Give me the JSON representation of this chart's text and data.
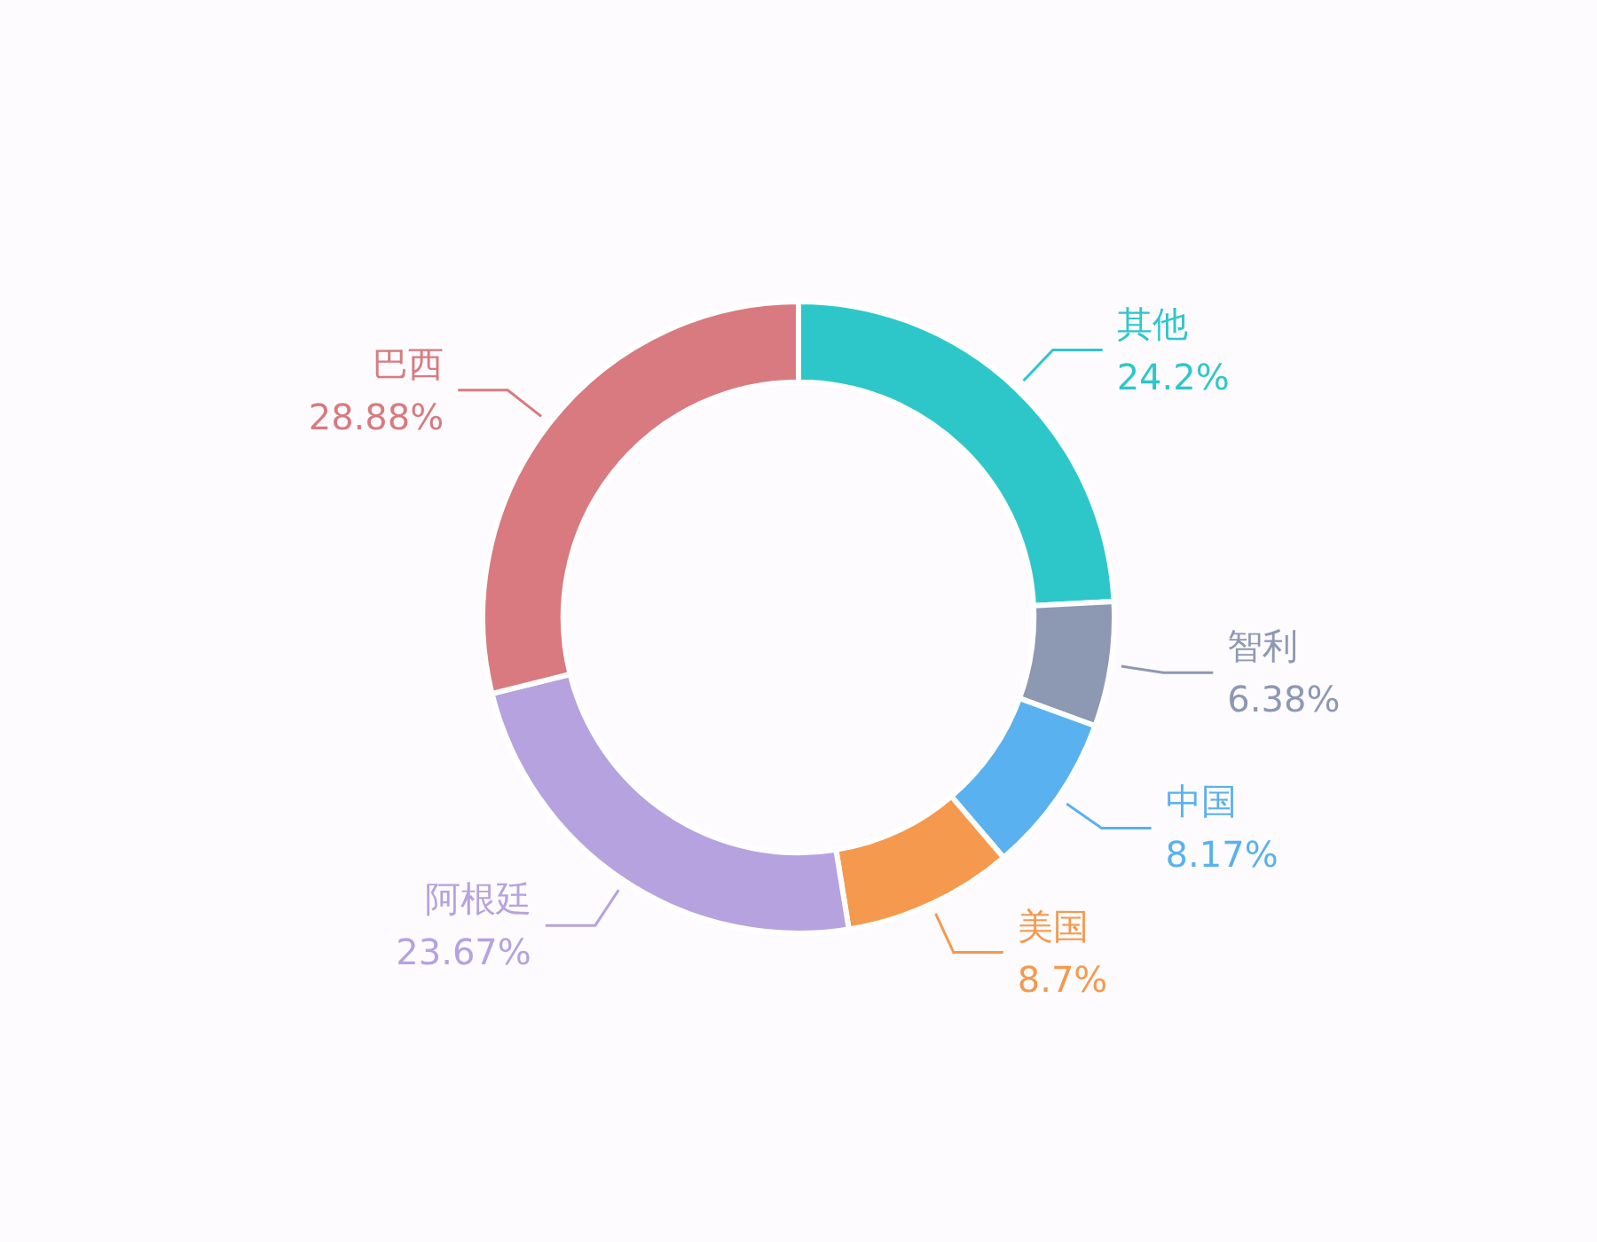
{
  "chart_data": {
    "type": "donut",
    "categories": [
      "其他",
      "智利",
      "中国",
      "美国",
      "阿根廷",
      "巴西"
    ],
    "values": [
      24.2,
      6.38,
      8.17,
      8.7,
      23.67,
      28.88
    ],
    "value_labels": [
      "24.2%",
      "6.38%",
      "8.17%",
      "8.7%",
      "23.67%",
      "28.88%"
    ],
    "colors": [
      "#2ec7c9",
      "#8d98b3",
      "#5ab1ef",
      "#f5994e",
      "#b6a2de",
      "#d87a80"
    ]
  }
}
